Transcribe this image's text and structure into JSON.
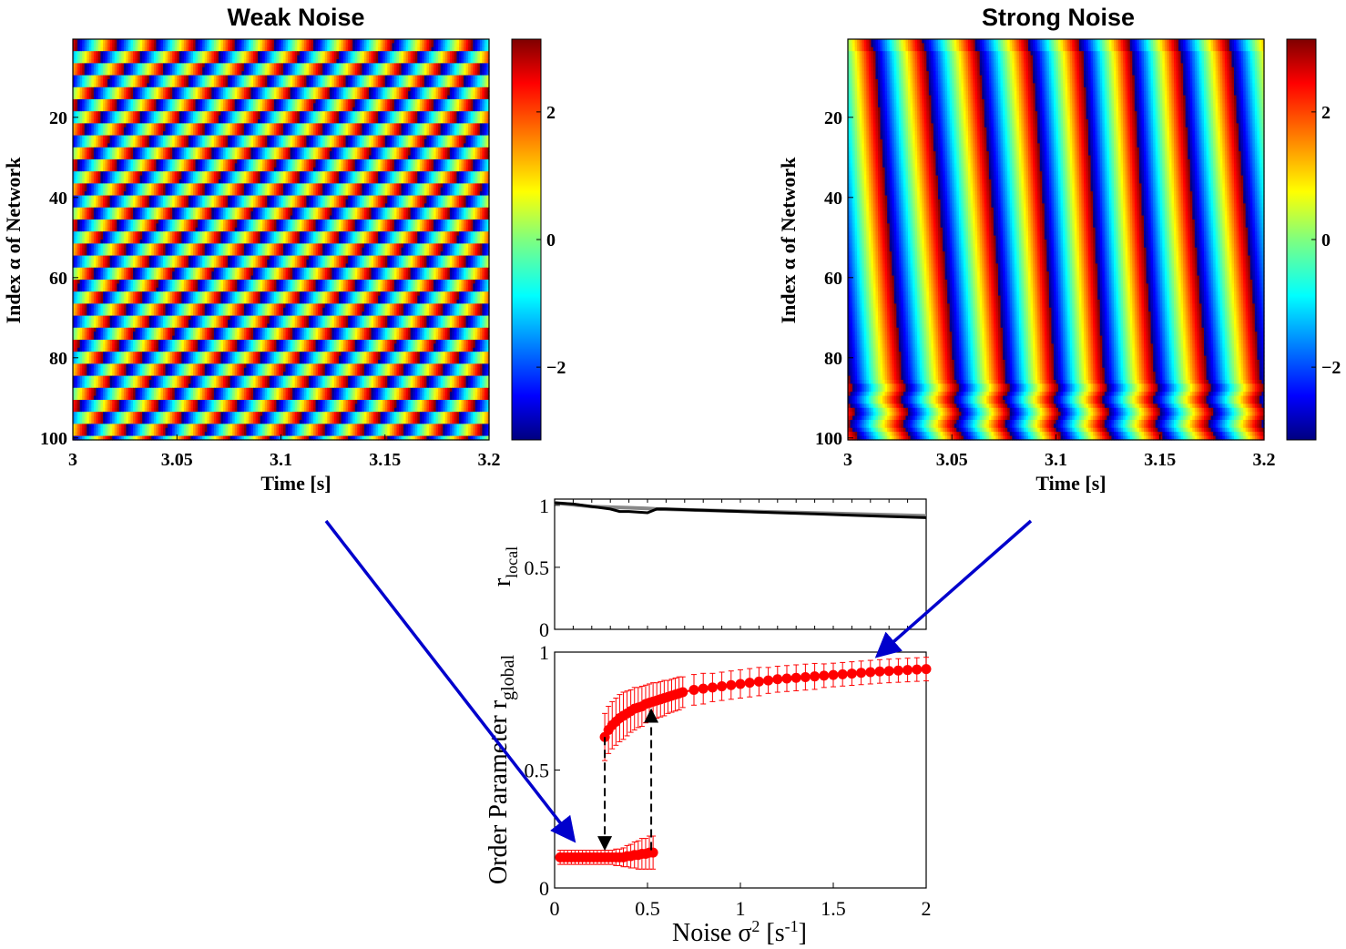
{
  "chart_data": [
    {
      "type": "heatmap",
      "title": "Weak Noise",
      "xlabel": "Time [s]",
      "ylabel": "Index α  of Network",
      "xlim": [
        3,
        3.2
      ],
      "ylim": [
        1,
        100
      ],
      "x_ticks": [
        "3",
        "3.05",
        "3.1",
        "3.15",
        "3.2"
      ],
      "y_ticks": [
        "20",
        "40",
        "60",
        "80",
        "100"
      ],
      "colorbar": {
        "range": [
          -3.14,
          3.14
        ],
        "ticks": [
          "2",
          "0",
          "−2"
        ],
        "colormap": "jet"
      },
      "pattern": "phase waves: each network oscillates with a different phase offset, producing a staggered brick-like pattern (no global synchrony)",
      "oscillation_period_s": 0.019
    },
    {
      "type": "heatmap",
      "title": "Strong Noise",
      "xlabel": "Time [s]",
      "ylabel": "Index α  of Network",
      "xlim": [
        3,
        3.2
      ],
      "ylim": [
        1,
        100
      ],
      "x_ticks": [
        "3",
        "3.05",
        "3.1",
        "3.15",
        "3.2"
      ],
      "y_ticks": [
        "20",
        "40",
        "60",
        "80",
        "100"
      ],
      "colorbar": {
        "range": [
          -3.14,
          3.14
        ],
        "ticks": [
          "2",
          "0",
          "−2"
        ],
        "colormap": "jet"
      },
      "pattern": "near-vertical stripes: networks oscillate almost in phase (global synchrony)",
      "oscillation_period_s": 0.0245
    },
    {
      "type": "line",
      "xlabel": "",
      "ylabel": "r_local",
      "ylabel_main": "r",
      "ylabel_sub": "local",
      "xlim": [
        0,
        2
      ],
      "ylim": [
        0,
        1.05
      ],
      "y_ticks": [
        "0",
        "0.5",
        "1"
      ],
      "series": [
        {
          "color": "#000000",
          "x": [
            0,
            0.1,
            0.2,
            0.3,
            0.35,
            0.4,
            0.5,
            0.55,
            0.6,
            0.8,
            1.0,
            1.2,
            1.4,
            1.6,
            1.8,
            2.0
          ],
          "y": [
            1.02,
            1.01,
            0.99,
            0.97,
            0.95,
            0.95,
            0.94,
            0.97,
            0.97,
            0.96,
            0.95,
            0.94,
            0.93,
            0.92,
            0.91,
            0.9
          ]
        },
        {
          "color": "#888888",
          "x": [
            0,
            0.2,
            0.3,
            0.4,
            0.5,
            0.55,
            0.8,
            1.2,
            1.6,
            2.0
          ],
          "y": [
            1.02,
            0.99,
            0.985,
            0.98,
            0.975,
            0.97,
            0.96,
            0.945,
            0.93,
            0.915
          ]
        }
      ]
    },
    {
      "type": "scatter",
      "xlabel_main": "Noise σ",
      "xlabel_sup1": "2",
      "xlabel_mid": " [s",
      "xlabel_sup2": "-1",
      "xlabel_end": "]",
      "ylabel_main": "Order Parameter r",
      "ylabel_sub": "global",
      "xlim": [
        0,
        2
      ],
      "ylim": [
        0,
        1
      ],
      "x_ticks": [
        "0",
        "0.5",
        "1",
        "1.5",
        "2"
      ],
      "y_ticks": [
        "0",
        "0.5",
        "1"
      ],
      "series": [
        {
          "branch": "low",
          "color": "#ff0000",
          "x": [
            0.03,
            0.05,
            0.07,
            0.09,
            0.11,
            0.13,
            0.15,
            0.17,
            0.19,
            0.21,
            0.23,
            0.25,
            0.27,
            0.29,
            0.31,
            0.33,
            0.35,
            0.37,
            0.39,
            0.41,
            0.43,
            0.45,
            0.47,
            0.49,
            0.51,
            0.53
          ],
          "y": [
            0.13,
            0.13,
            0.13,
            0.13,
            0.13,
            0.13,
            0.13,
            0.13,
            0.13,
            0.13,
            0.13,
            0.13,
            0.13,
            0.13,
            0.13,
            0.13,
            0.13,
            0.13,
            0.135,
            0.135,
            0.14,
            0.14,
            0.145,
            0.145,
            0.15,
            0.15
          ],
          "err": [
            0.03,
            0.03,
            0.03,
            0.03,
            0.03,
            0.03,
            0.03,
            0.03,
            0.03,
            0.03,
            0.03,
            0.03,
            0.03,
            0.03,
            0.03,
            0.035,
            0.035,
            0.04,
            0.045,
            0.05,
            0.055,
            0.06,
            0.065,
            0.065,
            0.07,
            0.07
          ]
        },
        {
          "branch": "high",
          "color": "#ff0000",
          "x": [
            0.27,
            0.29,
            0.31,
            0.33,
            0.35,
            0.37,
            0.39,
            0.41,
            0.43,
            0.45,
            0.47,
            0.49,
            0.51,
            0.53,
            0.55,
            0.57,
            0.59,
            0.61,
            0.63,
            0.65,
            0.67,
            0.69,
            0.75,
            0.8,
            0.85,
            0.9,
            0.95,
            1.0,
            1.05,
            1.1,
            1.15,
            1.2,
            1.25,
            1.3,
            1.35,
            1.4,
            1.45,
            1.5,
            1.55,
            1.6,
            1.65,
            1.7,
            1.75,
            1.8,
            1.85,
            1.9,
            1.95,
            2.0
          ],
          "y": [
            0.64,
            0.67,
            0.69,
            0.705,
            0.72,
            0.73,
            0.74,
            0.75,
            0.76,
            0.765,
            0.77,
            0.78,
            0.785,
            0.79,
            0.795,
            0.8,
            0.805,
            0.81,
            0.815,
            0.82,
            0.825,
            0.83,
            0.84,
            0.845,
            0.85,
            0.855,
            0.86,
            0.865,
            0.87,
            0.875,
            0.88,
            0.885,
            0.888,
            0.891,
            0.894,
            0.897,
            0.9,
            0.903,
            0.906,
            0.909,
            0.912,
            0.915,
            0.918,
            0.92,
            0.922,
            0.924,
            0.926,
            0.928
          ],
          "err": [
            0.1,
            0.1,
            0.1,
            0.1,
            0.1,
            0.1,
            0.095,
            0.09,
            0.09,
            0.085,
            0.085,
            0.08,
            0.08,
            0.08,
            0.075,
            0.075,
            0.075,
            0.07,
            0.07,
            0.07,
            0.07,
            0.065,
            0.065,
            0.065,
            0.06,
            0.06,
            0.06,
            0.06,
            0.06,
            0.06,
            0.055,
            0.055,
            0.055,
            0.055,
            0.055,
            0.055,
            0.05,
            0.05,
            0.05,
            0.05,
            0.05,
            0.05,
            0.05,
            0.05,
            0.05,
            0.05,
            0.05,
            0.05
          ]
        }
      ],
      "transitions": [
        {
          "direction": "down",
          "x": 0.27,
          "from": 0.64,
          "to": 0.15
        },
        {
          "direction": "up",
          "x": 0.52,
          "from": 0.16,
          "to": 0.77
        }
      ]
    }
  ],
  "arrows": [
    {
      "from": "Weak Noise",
      "to": "low branch",
      "color": "#0000cc"
    },
    {
      "from": "Strong Noise",
      "to": "high branch",
      "color": "#0000cc"
    }
  ]
}
